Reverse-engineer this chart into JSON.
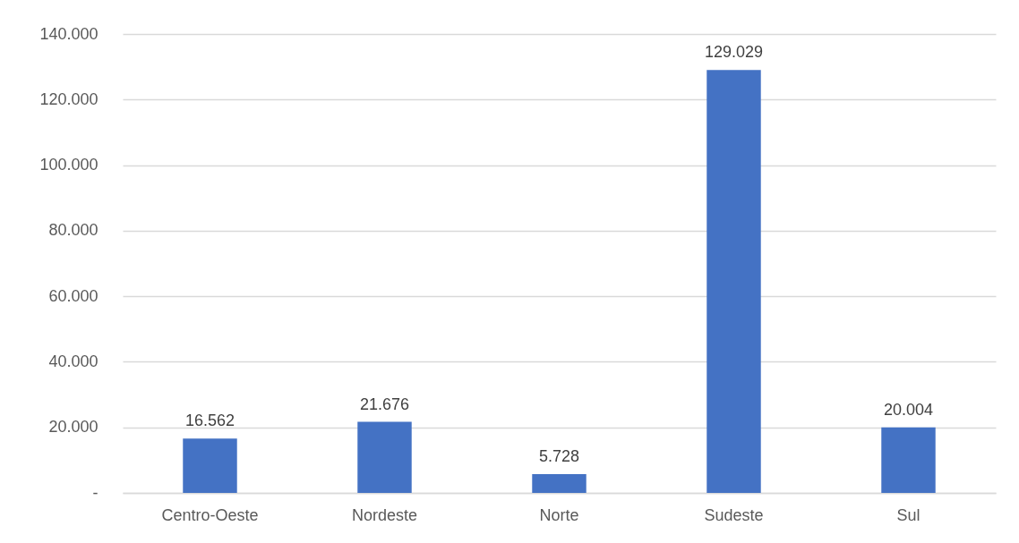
{
  "chart_data": {
    "type": "bar",
    "categories": [
      "Centro-Oeste",
      "Nordeste",
      "Norte",
      "Sudeste",
      "Sul"
    ],
    "values": [
      16562,
      21676,
      5728,
      129029,
      20004
    ],
    "value_labels": [
      "16.562",
      "21.676",
      "5.728",
      "129.029",
      "20.004"
    ],
    "color": "#4472c4",
    "ylim": [
      0,
      140000
    ],
    "yticks": [
      {
        "value": 0,
        "label": "-"
      },
      {
        "value": 20000,
        "label": "20.000"
      },
      {
        "value": 40000,
        "label": "40.000"
      },
      {
        "value": 60000,
        "label": "60.000"
      },
      {
        "value": 80000,
        "label": "80.000"
      },
      {
        "value": 100000,
        "label": "100.000"
      },
      {
        "value": 120000,
        "label": "120.000"
      },
      {
        "value": 140000,
        "label": "140.000"
      }
    ],
    "grid": "y"
  }
}
